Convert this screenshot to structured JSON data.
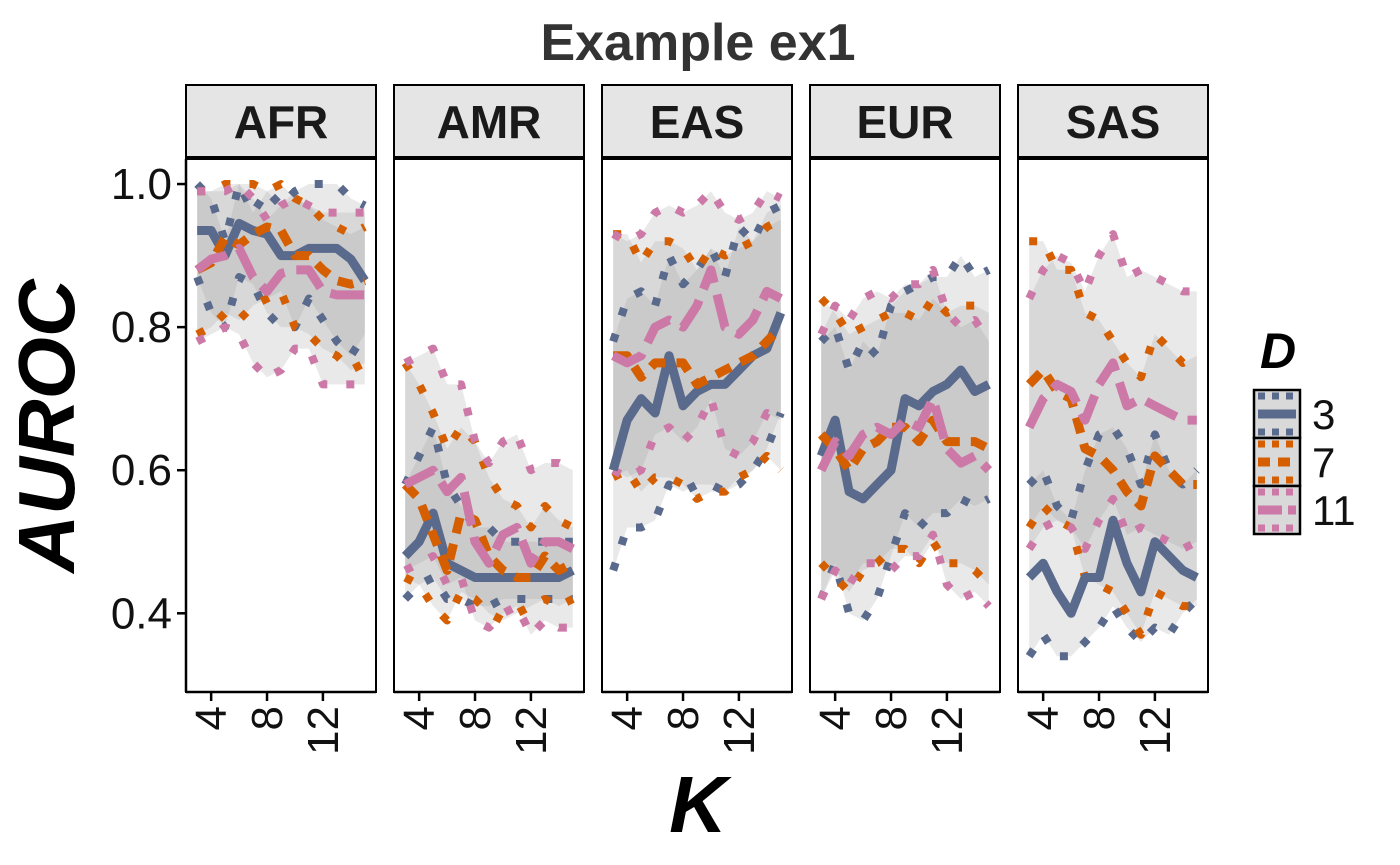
{
  "chart_data": {
    "type": "line",
    "title": "Example ex1",
    "xlabel": "K",
    "ylabel": "AUROC",
    "facets": [
      "AFR",
      "AMR",
      "EAS",
      "EUR",
      "SAS"
    ],
    "x": [
      3,
      4,
      5,
      6,
      7,
      8,
      9,
      10,
      11,
      12,
      13,
      14,
      15
    ],
    "xticks": [
      4,
      8,
      12
    ],
    "xtick_labels": [
      "4",
      "8",
      "12"
    ],
    "xlim": [
      2.2,
      15.8
    ],
    "yticks": [
      0.4,
      0.6,
      0.8,
      1.0
    ],
    "ytick_labels": [
      "0.4",
      "0.6",
      "0.8",
      "1.0"
    ],
    "ylim": [
      0.29,
      1.035
    ],
    "grid": false,
    "legend": {
      "title": "D",
      "position": "right",
      "items": [
        {
          "label": "3",
          "color": "#5a6a8c",
          "dash": "solid"
        },
        {
          "label": "7",
          "color": "#d55e00",
          "dash": "dashed"
        },
        {
          "label": "11",
          "color": "#cc79a7",
          "dash": "longdash"
        }
      ]
    },
    "series": [
      {
        "name": "3",
        "color": "#5a6a8c",
        "panels": {
          "AFR": {
            "mean": [
              0.935,
              0.935,
              0.9,
              0.945,
              0.935,
              0.93,
              0.9,
              0.9,
              0.91,
              0.91,
              0.91,
              0.895,
              0.865
            ],
            "upper": [
              1.0,
              0.98,
              0.92,
              1.0,
              0.96,
              0.99,
              0.97,
              0.99,
              1.0,
              1.0,
              1.0,
              0.98,
              0.97
            ],
            "lower": [
              0.87,
              0.82,
              0.8,
              0.87,
              0.86,
              0.82,
              0.8,
              0.8,
              0.84,
              0.81,
              0.78,
              0.76,
              0.79
            ]
          },
          "AMR": {
            "mean": [
              0.48,
              0.5,
              0.54,
              0.47,
              0.46,
              0.45,
              0.45,
              0.45,
              0.45,
              0.45,
              0.45,
              0.45,
              0.46
            ],
            "upper": [
              0.58,
              0.62,
              0.66,
              0.58,
              0.55,
              0.52,
              0.52,
              0.5,
              0.5,
              0.5,
              0.5,
              0.5,
              0.5
            ],
            "lower": [
              0.42,
              0.44,
              0.45,
              0.42,
              0.42,
              0.41,
              0.41,
              0.42,
              0.42,
              0.42,
              0.42,
              0.42,
              0.42
            ]
          },
          "EAS": {
            "mean": [
              0.6,
              0.67,
              0.7,
              0.68,
              0.76,
              0.69,
              0.71,
              0.72,
              0.72,
              0.74,
              0.76,
              0.77,
              0.82
            ],
            "upper": [
              0.78,
              0.84,
              0.85,
              0.83,
              0.9,
              0.86,
              0.88,
              0.91,
              0.87,
              0.94,
              0.92,
              0.96,
              0.97
            ],
            "lower": [
              0.46,
              0.52,
              0.52,
              0.53,
              0.58,
              0.57,
              0.58,
              0.58,
              0.57,
              0.58,
              0.6,
              0.63,
              0.68
            ]
          },
          "EUR": {
            "mean": [
              0.62,
              0.67,
              0.57,
              0.56,
              0.58,
              0.6,
              0.7,
              0.69,
              0.71,
              0.72,
              0.74,
              0.71,
              0.72
            ],
            "upper": [
              0.78,
              0.8,
              0.74,
              0.78,
              0.76,
              0.83,
              0.85,
              0.86,
              0.87,
              0.87,
              0.9,
              0.87,
              0.88
            ],
            "lower": [
              0.42,
              0.47,
              0.4,
              0.39,
              0.42,
              0.48,
              0.54,
              0.52,
              0.54,
              0.54,
              0.56,
              0.55,
              0.56
            ]
          },
          "SAS": {
            "mean": [
              0.45,
              0.47,
              0.43,
              0.4,
              0.45,
              0.45,
              0.53,
              0.47,
              0.43,
              0.5,
              0.48,
              0.46,
              0.45
            ],
            "upper": [
              0.58,
              0.6,
              0.55,
              0.53,
              0.6,
              0.65,
              0.66,
              0.63,
              0.58,
              0.65,
              0.6,
              0.58,
              0.6
            ],
            "lower": [
              0.34,
              0.37,
              0.34,
              0.34,
              0.36,
              0.38,
              0.41,
              0.38,
              0.36,
              0.38,
              0.37,
              0.4,
              0.42
            ]
          }
        }
      },
      {
        "name": "7",
        "color": "#d55e00",
        "panels": {
          "AFR": {
            "mean": [
              0.88,
              0.89,
              0.925,
              0.915,
              0.93,
              0.94,
              0.935,
              0.9,
              0.9,
              0.88,
              0.865,
              0.86,
              0.865
            ],
            "upper": [
              0.99,
              0.99,
              1.0,
              1.0,
              1.0,
              0.99,
              1.0,
              0.98,
              0.97,
              0.95,
              0.94,
              0.93,
              0.94
            ],
            "lower": [
              0.79,
              0.8,
              0.82,
              0.81,
              0.83,
              0.84,
              0.85,
              0.8,
              0.79,
              0.77,
              0.76,
              0.74,
              0.75
            ]
          },
          "AMR": {
            "mean": [
              0.58,
              0.56,
              0.51,
              0.46,
              0.54,
              0.53,
              0.48,
              0.46,
              0.45,
              0.45,
              0.48,
              0.46,
              0.47
            ],
            "upper": [
              0.75,
              0.72,
              0.68,
              0.63,
              0.66,
              0.64,
              0.59,
              0.56,
              0.55,
              0.52,
              0.55,
              0.53,
              0.52
            ],
            "lower": [
              0.45,
              0.44,
              0.41,
              0.39,
              0.43,
              0.42,
              0.4,
              0.39,
              0.4,
              0.41,
              0.42,
              0.41,
              0.42
            ]
          },
          "EAS": {
            "mean": [
              0.76,
              0.76,
              0.73,
              0.75,
              0.75,
              0.75,
              0.72,
              0.73,
              0.74,
              0.75,
              0.76,
              0.78,
              0.8
            ],
            "upper": [
              0.93,
              0.93,
              0.89,
              0.92,
              0.92,
              0.91,
              0.88,
              0.91,
              0.9,
              0.91,
              0.92,
              0.94,
              0.95
            ],
            "lower": [
              0.59,
              0.6,
              0.57,
              0.59,
              0.59,
              0.58,
              0.56,
              0.57,
              0.57,
              0.59,
              0.6,
              0.62,
              0.6
            ]
          },
          "EUR": {
            "mean": [
              0.65,
              0.63,
              0.6,
              0.63,
              0.64,
              0.66,
              0.66,
              0.64,
              0.67,
              0.64,
              0.64,
              0.64,
              0.63
            ],
            "upper": [
              0.84,
              0.82,
              0.79,
              0.8,
              0.81,
              0.82,
              0.82,
              0.81,
              0.84,
              0.82,
              0.83,
              0.83,
              0.82
            ],
            "lower": [
              0.47,
              0.45,
              0.43,
              0.46,
              0.47,
              0.49,
              0.49,
              0.47,
              0.5,
              0.47,
              0.47,
              0.46,
              0.44
            ]
          },
          "SAS": {
            "mean": [
              0.72,
              0.74,
              0.71,
              0.7,
              0.63,
              0.62,
              0.6,
              0.57,
              0.55,
              0.62,
              0.6,
              0.58,
              0.58
            ],
            "upper": [
              0.92,
              0.92,
              0.88,
              0.88,
              0.82,
              0.81,
              0.78,
              0.75,
              0.73,
              0.79,
              0.77,
              0.75,
              0.76
            ],
            "lower": [
              0.52,
              0.55,
              0.53,
              0.52,
              0.45,
              0.44,
              0.43,
              0.4,
              0.37,
              0.43,
              0.42,
              0.41,
              0.41
            ]
          }
        }
      },
      {
        "name": "11",
        "color": "#cc79a7",
        "panels": {
          "AFR": {
            "mean": [
              0.88,
              0.895,
              0.9,
              0.91,
              0.87,
              0.85,
              0.875,
              0.88,
              0.88,
              0.85,
              0.845,
              0.845,
              0.845
            ],
            "upper": [
              0.99,
              0.99,
              0.99,
              1.0,
              0.98,
              0.95,
              0.97,
              0.98,
              0.97,
              0.96,
              0.96,
              0.96,
              0.96
            ],
            "lower": [
              0.78,
              0.79,
              0.8,
              0.79,
              0.75,
              0.73,
              0.74,
              0.77,
              0.77,
              0.72,
              0.72,
              0.72,
              0.72
            ]
          },
          "AMR": {
            "mean": [
              0.58,
              0.59,
              0.6,
              0.57,
              0.59,
              0.5,
              0.47,
              0.51,
              0.52,
              0.47,
              0.5,
              0.5,
              0.49
            ],
            "upper": [
              0.75,
              0.76,
              0.77,
              0.72,
              0.72,
              0.64,
              0.61,
              0.64,
              0.65,
              0.6,
              0.61,
              0.61,
              0.6
            ],
            "lower": [
              0.46,
              0.47,
              0.48,
              0.44,
              0.45,
              0.39,
              0.38,
              0.4,
              0.41,
              0.37,
              0.39,
              0.38,
              0.38
            ]
          },
          "EAS": {
            "mean": [
              0.76,
              0.75,
              0.76,
              0.8,
              0.81,
              0.8,
              0.83,
              0.88,
              0.8,
              0.79,
              0.81,
              0.85,
              0.84
            ],
            "upper": [
              0.93,
              0.92,
              0.93,
              0.96,
              0.97,
              0.96,
              0.97,
              0.99,
              0.96,
              0.95,
              0.96,
              0.99,
              0.98
            ],
            "lower": [
              0.6,
              0.59,
              0.6,
              0.65,
              0.66,
              0.64,
              0.66,
              0.7,
              0.63,
              0.62,
              0.64,
              0.68,
              0.67
            ]
          },
          "EUR": {
            "mean": [
              0.6,
              0.64,
              0.62,
              0.65,
              0.66,
              0.65,
              0.67,
              0.66,
              0.7,
              0.63,
              0.61,
              0.62,
              0.6
            ],
            "upper": [
              0.79,
              0.83,
              0.81,
              0.84,
              0.85,
              0.84,
              0.86,
              0.86,
              0.88,
              0.82,
              0.8,
              0.81,
              0.78
            ],
            "lower": [
              0.42,
              0.46,
              0.44,
              0.47,
              0.47,
              0.46,
              0.48,
              0.48,
              0.51,
              0.44,
              0.42,
              0.43,
              0.41
            ]
          },
          "SAS": {
            "mean": [
              0.66,
              0.7,
              0.72,
              0.71,
              0.67,
              0.72,
              0.75,
              0.69,
              0.7,
              0.69,
              0.68,
              0.67,
              0.67
            ],
            "upper": [
              0.84,
              0.88,
              0.9,
              0.89,
              0.85,
              0.9,
              0.93,
              0.87,
              0.88,
              0.87,
              0.86,
              0.85,
              0.85
            ],
            "lower": [
              0.49,
              0.52,
              0.53,
              0.52,
              0.49,
              0.53,
              0.56,
              0.51,
              0.52,
              0.51,
              0.5,
              0.49,
              0.5
            ]
          }
        }
      }
    ]
  }
}
